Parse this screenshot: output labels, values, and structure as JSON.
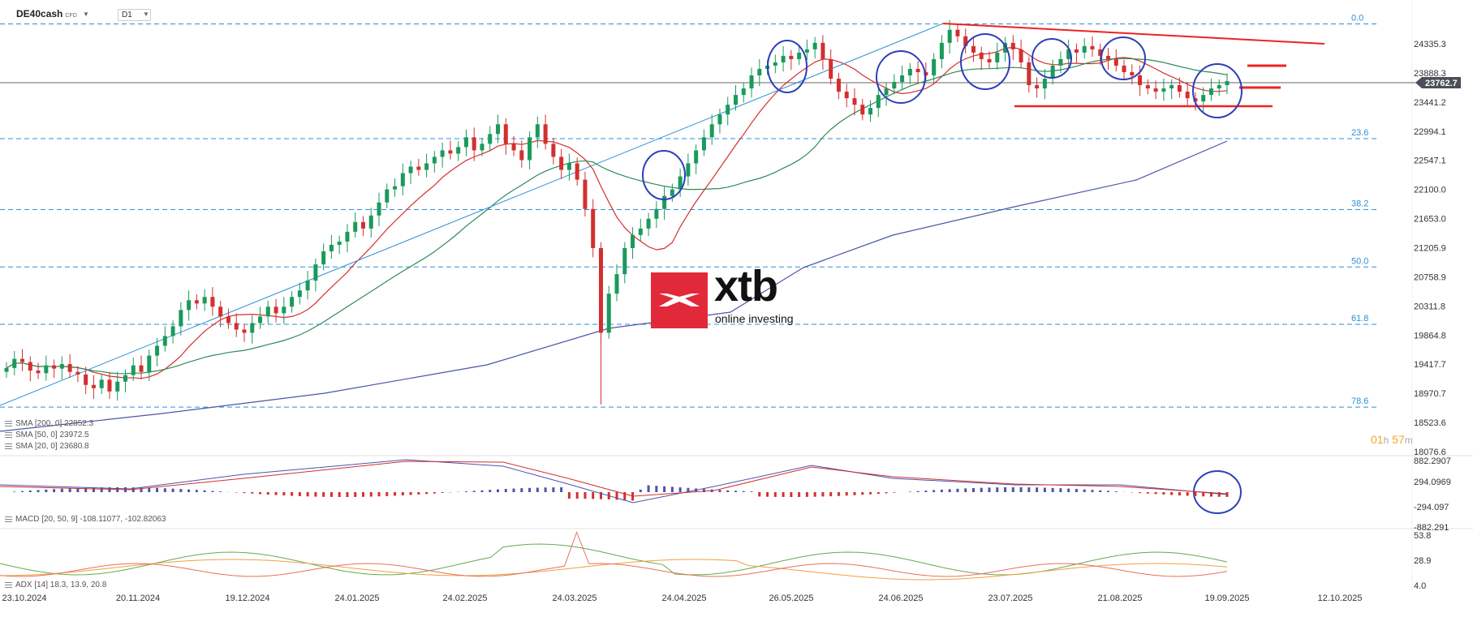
{
  "header": {
    "symbol": "DE40cash",
    "badge": "CFD",
    "timeframe": "D1"
  },
  "indicators": {
    "sma200": "SMA [200, 0] 22852.3",
    "sma50": "SMA [50, 0] 23972.5",
    "sma20": "SMA [20, 0] 23680.8",
    "macd": "MACD [20, 50, 9] -108.11077, -102.82063",
    "adx": "ADX [14] 18.3, 13.9, 20.8"
  },
  "timer": {
    "h": "01",
    "hu": "h",
    "m": "57",
    "mu": "m"
  },
  "logo": {
    "brand": "xtb",
    "tagline": "online investing"
  },
  "colors": {
    "bull": "#1a9a5c",
    "bear": "#d32f2f",
    "fib": "#2b8fd6",
    "sma200": "#4a55a6",
    "sma50": "#2e8b57",
    "sma20": "#d32f2f",
    "trend": "#2b8fd6",
    "circle": "#2c3fb8"
  },
  "chart_data": [
    {
      "type": "candlestick",
      "panel": "price",
      "x": [
        "23.10.2024",
        "20.11.2024",
        "19.12.2024",
        "24.01.2025",
        "24.02.2025",
        "24.03.2025",
        "24.04.2025",
        "26.05.2025",
        "24.06.2025",
        "23.07.2025",
        "21.08.2025",
        "19.09.2025",
        "12.10.2025"
      ],
      "y_ticks": [
        "24335.3",
        "23888.3",
        "23441.2",
        "22994.1",
        "22547.1",
        "22100.0",
        "21653.0",
        "21205.9",
        "20758.9",
        "20311.8",
        "19864.8",
        "19417.7",
        "18970.7",
        "18523.6",
        "18076.6"
      ],
      "last_price": "23762.7",
      "fib_levels": [
        "0.0",
        "23.6",
        "38.2",
        "50.0",
        "61.8",
        "78.6"
      ],
      "fib_prices": [
        24640,
        22880,
        21790,
        20910,
        20030,
        18760
      ],
      "closes": [
        19360,
        19500,
        19450,
        19320,
        19280,
        19400,
        19350,
        19420,
        19300,
        19260,
        19100,
        19050,
        19180,
        19000,
        19150,
        19250,
        19400,
        19300,
        19550,
        19700,
        19850,
        20000,
        20250,
        20400,
        20350,
        20450,
        20300,
        20150,
        20050,
        19950,
        19900,
        20050,
        20150,
        20300,
        20200,
        20300,
        20450,
        20550,
        20700,
        20950,
        21150,
        21250,
        21300,
        21450,
        21600,
        21500,
        21700,
        21900,
        22100,
        22150,
        22350,
        22450,
        22400,
        22500,
        22600,
        22700,
        22650,
        22750,
        22900,
        22700,
        22800,
        22950,
        23100,
        22800,
        22700,
        22550,
        22900,
        23100,
        22800,
        22600,
        22400,
        22500,
        22250,
        21800,
        21200,
        19900,
        20500,
        20800,
        21200,
        21400,
        21500,
        21650,
        21800,
        22000,
        22100,
        22300,
        22500,
        22700,
        22900,
        23100,
        23250,
        23400,
        23550,
        23650,
        23850,
        23950,
        24000,
        24050,
        24150,
        24100,
        24200,
        24250,
        24350,
        24100,
        23800,
        23600,
        23500,
        23400,
        23250,
        23350,
        23550,
        23650,
        23750,
        23850,
        23950,
        23900,
        23850,
        24100,
        24350,
        24550,
        24450,
        24300,
        24200,
        24100,
        24050,
        24200,
        24350,
        24250,
        24050,
        23700,
        23650,
        23800,
        24000,
        24100,
        24250,
        24200,
        24300,
        24250,
        24150,
        24100,
        24000,
        23900,
        23850,
        23700,
        23650,
        23600,
        23650,
        23700,
        23600,
        23500,
        23450,
        23550,
        23650,
        23700,
        23762
      ],
      "sma200_points": "approx",
      "macd_ticks": [
        "882.2907",
        "294.0969",
        "-294.097",
        "-882.291"
      ],
      "adx_ticks": [
        "53.8",
        "28.9",
        "4.0"
      ]
    }
  ]
}
